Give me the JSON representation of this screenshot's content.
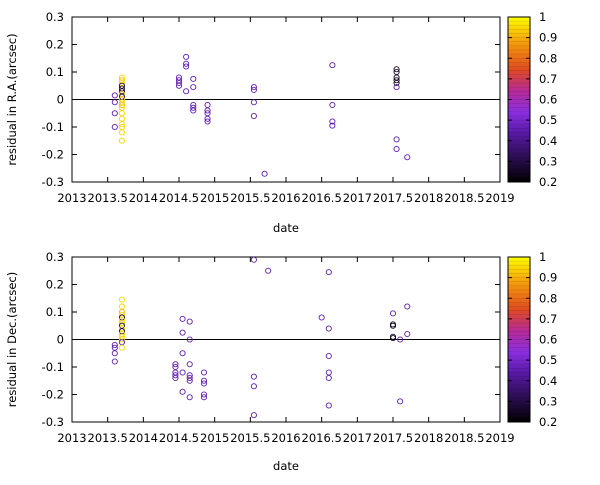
{
  "chart_data": [
    {
      "type": "scatter",
      "xlabel": "date",
      "ylabel": "residual in R.A.(arcsec)",
      "xlim": [
        2013,
        2019
      ],
      "ylim": [
        -0.3,
        0.3
      ],
      "x_ticks": [
        "2013",
        "2013.5",
        "2014",
        "2014.5",
        "2015",
        "2015.5",
        "2016",
        "2016.5",
        "2017",
        "2017.5",
        "2018",
        "2018.5",
        "2019"
      ],
      "y_ticks": [
        "0.3",
        "0.2",
        "0.1",
        "0",
        "-0.1",
        "-0.2",
        "-0.3"
      ],
      "zero_line": true,
      "colorbar": {
        "range": [
          0.2,
          1.0
        ],
        "ticks": [
          "1",
          "0.9",
          "0.8",
          "0.7",
          "0.6",
          "0.5",
          "0.4",
          "0.3",
          "0.2"
        ],
        "palette": [
          "#000000",
          "#7a2ff2",
          "#d2237f",
          "#f28c0f",
          "#ffff00"
        ]
      },
      "points": [
        [
          2013.6,
          0.015,
          0.45
        ],
        [
          2013.6,
          -0.01,
          0.45
        ],
        [
          2013.6,
          -0.05,
          0.45
        ],
        [
          2013.6,
          -0.1,
          0.45
        ],
        [
          2013.7,
          0.08,
          0.95
        ],
        [
          2013.7,
          0.07,
          0.92
        ],
        [
          2013.7,
          0.06,
          0.95
        ],
        [
          2013.7,
          0.05,
          0.25
        ],
        [
          2013.7,
          0.04,
          0.25
        ],
        [
          2013.7,
          0.03,
          0.25
        ],
        [
          2013.7,
          0.02,
          0.9
        ],
        [
          2013.7,
          0.01,
          0.25
        ],
        [
          2013.7,
          0,
          0.93
        ],
        [
          2013.7,
          -0.01,
          0.95
        ],
        [
          2013.7,
          -0.02,
          0.9
        ],
        [
          2013.7,
          -0.03,
          0.95
        ],
        [
          2013.7,
          -0.05,
          0.95
        ],
        [
          2013.7,
          -0.07,
          0.95
        ],
        [
          2013.7,
          -0.09,
          0.95
        ],
        [
          2013.7,
          -0.1,
          0.95
        ],
        [
          2013.7,
          -0.12,
          0.95
        ],
        [
          2013.7,
          -0.15,
          0.95
        ],
        [
          2014.5,
          0.08,
          0.45
        ],
        [
          2014.5,
          0.07,
          0.45
        ],
        [
          2014.5,
          0.06,
          0.45
        ],
        [
          2014.5,
          0.05,
          0.45
        ],
        [
          2014.6,
          0.155,
          0.45
        ],
        [
          2014.6,
          0.13,
          0.45
        ],
        [
          2014.6,
          0.12,
          0.45
        ],
        [
          2014.6,
          0.03,
          0.45
        ],
        [
          2014.7,
          0.075,
          0.45
        ],
        [
          2014.7,
          0.045,
          0.45
        ],
        [
          2014.7,
          -0.02,
          0.45
        ],
        [
          2014.7,
          -0.03,
          0.45
        ],
        [
          2014.7,
          -0.04,
          0.45
        ],
        [
          2014.9,
          -0.02,
          0.45
        ],
        [
          2014.9,
          -0.04,
          0.45
        ],
        [
          2014.9,
          -0.05,
          0.45
        ],
        [
          2014.9,
          -0.07,
          0.45
        ],
        [
          2014.9,
          -0.08,
          0.45
        ],
        [
          2015.55,
          0.045,
          0.45
        ],
        [
          2015.55,
          0.035,
          0.45
        ],
        [
          2015.55,
          -0.01,
          0.45
        ],
        [
          2015.55,
          -0.06,
          0.45
        ],
        [
          2015.7,
          -0.27,
          0.45
        ],
        [
          2016.65,
          0.125,
          0.45
        ],
        [
          2016.65,
          -0.02,
          0.45
        ],
        [
          2016.65,
          -0.08,
          0.45
        ],
        [
          2016.65,
          -0.095,
          0.45
        ],
        [
          2017.55,
          0.11,
          0.25
        ],
        [
          2017.55,
          0.1,
          0.25
        ],
        [
          2017.55,
          0.08,
          0.25
        ],
        [
          2017.55,
          0.07,
          0.25
        ],
        [
          2017.55,
          0.06,
          0.25
        ],
        [
          2017.55,
          0.045,
          0.45
        ],
        [
          2017.55,
          -0.145,
          0.45
        ],
        [
          2017.55,
          -0.18,
          0.45
        ],
        [
          2017.7,
          -0.21,
          0.45
        ]
      ]
    },
    {
      "type": "scatter",
      "xlabel": "date",
      "ylabel": "residual in Dec.(arcsec)",
      "xlim": [
        2013,
        2019
      ],
      "ylim": [
        -0.3,
        0.3
      ],
      "x_ticks": [
        "2013",
        "2013.5",
        "2014",
        "2014.5",
        "2015",
        "2015.5",
        "2016",
        "2016.5",
        "2017",
        "2017.5",
        "2018",
        "2018.5",
        "2019"
      ],
      "y_ticks": [
        "0.3",
        "0.2",
        "0.1",
        "0",
        "-0.1",
        "-0.2",
        "-0.3"
      ],
      "zero_line": true,
      "colorbar": {
        "range": [
          0.2,
          1.0
        ],
        "ticks": [
          "1",
          "0.9",
          "0.8",
          "0.7",
          "0.6",
          "0.5",
          "0.4",
          "0.3",
          "0.2"
        ],
        "palette": [
          "#000000",
          "#7a2ff2",
          "#d2237f",
          "#f28c0f",
          "#ffff00"
        ]
      },
      "points": [
        [
          2013.6,
          -0.02,
          0.45
        ],
        [
          2013.6,
          -0.03,
          0.45
        ],
        [
          2013.6,
          -0.05,
          0.45
        ],
        [
          2013.6,
          -0.08,
          0.45
        ],
        [
          2013.7,
          0.145,
          0.95
        ],
        [
          2013.7,
          0.12,
          0.95
        ],
        [
          2013.7,
          0.1,
          0.9
        ],
        [
          2013.7,
          0.09,
          0.95
        ],
        [
          2013.7,
          0.08,
          0.25
        ],
        [
          2013.7,
          0.07,
          0.95
        ],
        [
          2013.7,
          0.06,
          0.93
        ],
        [
          2013.7,
          0.05,
          0.25
        ],
        [
          2013.7,
          0.04,
          0.95
        ],
        [
          2013.7,
          0.03,
          0.25
        ],
        [
          2013.7,
          0.02,
          0.95
        ],
        [
          2013.7,
          0.01,
          0.95
        ],
        [
          2013.7,
          0,
          0.95
        ],
        [
          2013.7,
          -0.01,
          0.45
        ],
        [
          2013.7,
          -0.03,
          0.95
        ],
        [
          2014.45,
          -0.09,
          0.45
        ],
        [
          2014.45,
          -0.1,
          0.45
        ],
        [
          2014.45,
          -0.12,
          0.45
        ],
        [
          2014.45,
          -0.13,
          0.45
        ],
        [
          2014.45,
          -0.14,
          0.45
        ],
        [
          2014.55,
          0.075,
          0.45
        ],
        [
          2014.55,
          0.025,
          0.45
        ],
        [
          2014.55,
          -0.05,
          0.45
        ],
        [
          2014.55,
          -0.12,
          0.45
        ],
        [
          2014.55,
          -0.19,
          0.45
        ],
        [
          2014.65,
          0.065,
          0.45
        ],
        [
          2014.65,
          0,
          0.45
        ],
        [
          2014.65,
          -0.09,
          0.45
        ],
        [
          2014.65,
          -0.13,
          0.45
        ],
        [
          2014.65,
          -0.14,
          0.45
        ],
        [
          2014.65,
          -0.15,
          0.45
        ],
        [
          2014.65,
          -0.21,
          0.45
        ],
        [
          2014.85,
          -0.12,
          0.45
        ],
        [
          2014.85,
          -0.15,
          0.45
        ],
        [
          2014.85,
          -0.16,
          0.45
        ],
        [
          2014.85,
          -0.2,
          0.45
        ],
        [
          2014.85,
          -0.21,
          0.45
        ],
        [
          2015.55,
          0.29,
          0.45
        ],
        [
          2015.55,
          -0.135,
          0.45
        ],
        [
          2015.55,
          -0.17,
          0.45
        ],
        [
          2015.55,
          -0.275,
          0.45
        ],
        [
          2015.75,
          0.25,
          0.45
        ],
        [
          2016.5,
          0.08,
          0.45
        ],
        [
          2016.6,
          0.245,
          0.45
        ],
        [
          2016.6,
          0.04,
          0.45
        ],
        [
          2016.6,
          -0.06,
          0.45
        ],
        [
          2016.6,
          -0.12,
          0.45
        ],
        [
          2016.6,
          -0.14,
          0.45
        ],
        [
          2016.6,
          -0.24,
          0.45
        ],
        [
          2017.5,
          0.095,
          0.45
        ],
        [
          2017.5,
          0.055,
          0.25
        ],
        [
          2017.5,
          0.05,
          0.25
        ],
        [
          2017.5,
          0.01,
          0.25
        ],
        [
          2017.5,
          0.005,
          0.25
        ],
        [
          2017.6,
          0,
          0.45
        ],
        [
          2017.6,
          -0.225,
          0.45
        ],
        [
          2017.7,
          0.12,
          0.45
        ],
        [
          2017.7,
          0.02,
          0.45
        ]
      ]
    }
  ]
}
